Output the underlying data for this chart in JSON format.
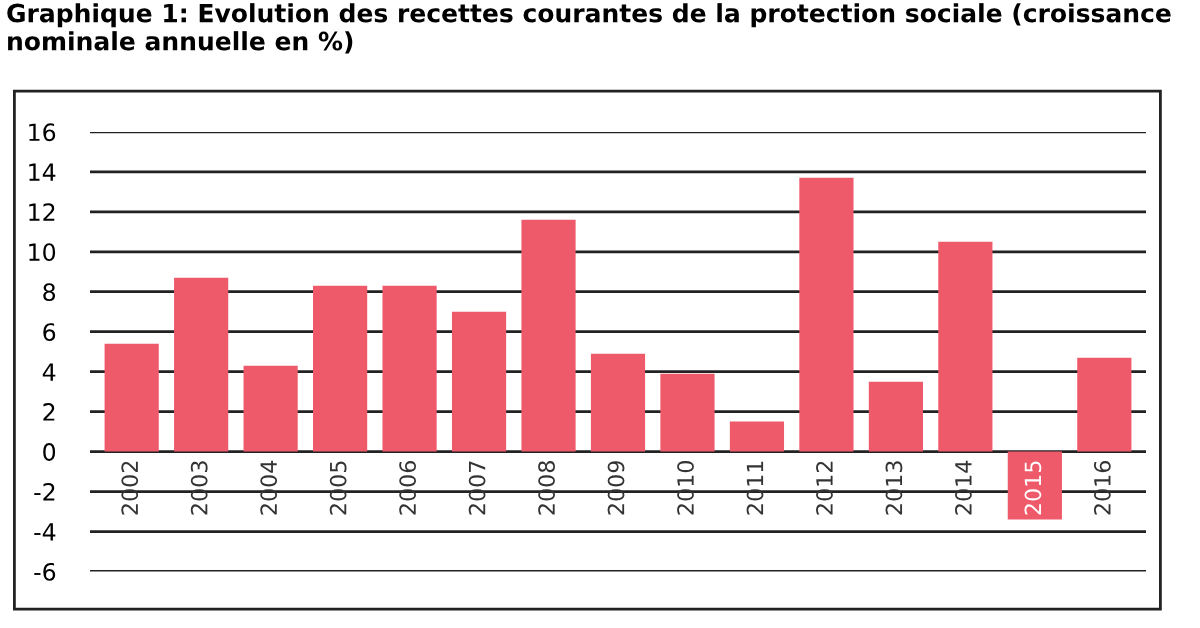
{
  "chart_data": {
    "type": "bar",
    "title": "Graphique 1: Evolution des recettes courantes de la protection sociale (croissance nominale annuelle en %)",
    "categories": [
      "2002",
      "2003",
      "2004",
      "2005",
      "2006",
      "2007",
      "2008",
      "2009",
      "2010",
      "2011",
      "2012",
      "2013",
      "2014",
      "2015",
      "2016"
    ],
    "values": [
      5.4,
      8.7,
      4.3,
      8.3,
      8.3,
      7.0,
      11.6,
      4.9,
      3.9,
      1.5,
      13.7,
      3.5,
      10.5,
      -3.4,
      4.7
    ],
    "color": "#ee5a6a",
    "ylim": [
      -6,
      16
    ],
    "yticks": [
      -6,
      -4,
      -2,
      0,
      2,
      4,
      6,
      8,
      10,
      12,
      14,
      16
    ],
    "grid": "y"
  }
}
